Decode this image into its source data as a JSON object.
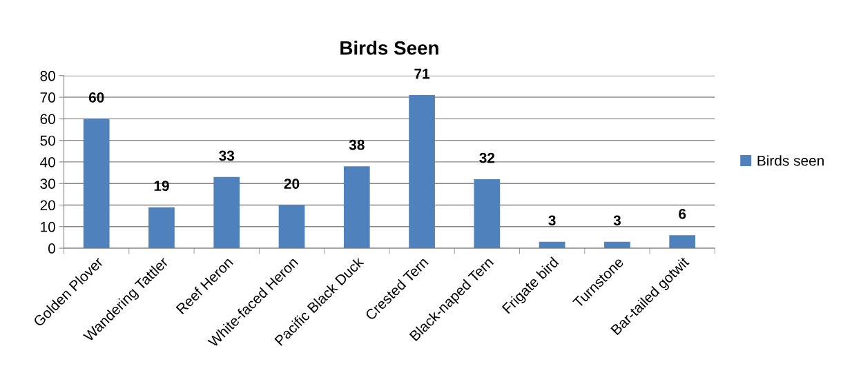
{
  "chart_data": {
    "type": "bar",
    "title": "Birds Seen",
    "categories": [
      "Golden Plover",
      "Wandering Tattler",
      "Reef Heron",
      "White-faced Heron",
      "Pacific Black Duck",
      "Crested Tern",
      "Black-naped Tern",
      "Frigate bird",
      "Turnstone",
      "Bar-tailed gotwit"
    ],
    "series": [
      {
        "name": "Birds seen",
        "color": "#4f81bd",
        "values": [
          60,
          19,
          33,
          20,
          38,
          71,
          32,
          3,
          3,
          6
        ]
      }
    ],
    "ylim": [
      0,
      80
    ],
    "yticks": [
      0,
      10,
      20,
      30,
      40,
      50,
      60,
      70,
      80
    ],
    "grid": "y",
    "legend": "right",
    "data_labels": true
  }
}
